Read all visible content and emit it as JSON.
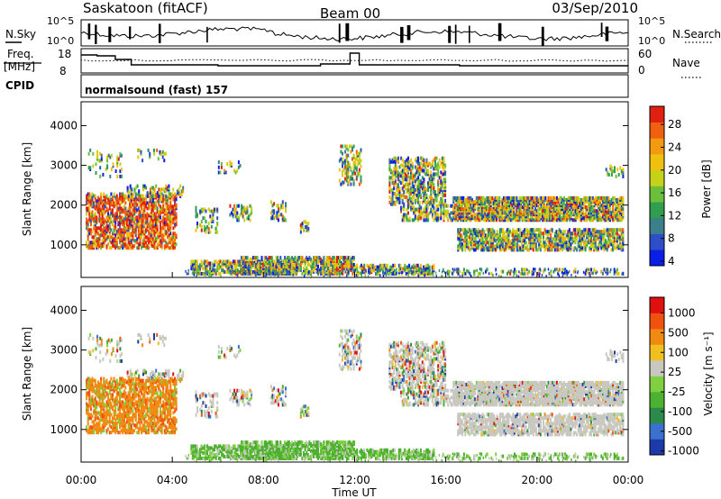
{
  "header": {
    "station": "Saskatoon (fitACF)",
    "beam": "Beam 00",
    "date": "03/Sep/2010"
  },
  "noise_panel": {
    "left_label": "N.Sky",
    "right_label": "N.Search",
    "left_ticks": [
      "10^5",
      "10^0"
    ],
    "right_ticks": [
      "10^5",
      "10^0"
    ]
  },
  "freq_panel": {
    "left_label_1": "Freq.",
    "left_label_2": "[MHz]",
    "right_label": "Nave",
    "left_ticks": [
      "18",
      "8"
    ],
    "right_ticks": [
      "60",
      "0"
    ]
  },
  "cpid": {
    "label": "CPID",
    "text": "normalsound (fast) 157"
  },
  "power_panel": {
    "ylabel": "Slant Range [km]",
    "yticks": [
      "4000",
      "3000",
      "2000",
      "1000"
    ],
    "colorbar_label": "Power [dB]",
    "colorbar_ticks": [
      "28",
      "24",
      "20",
      "16",
      "12",
      "8",
      "4"
    ],
    "colors": [
      "#0a1ee6",
      "#2e4ec8",
      "#3a7f8a",
      "#2f9e4e",
      "#6bbf3a",
      "#c6d21a",
      "#f0c010",
      "#f29a10",
      "#f06010",
      "#e02010"
    ]
  },
  "velocity_panel": {
    "ylabel": "Slant Range [km]",
    "yticks": [
      "4000",
      "3000",
      "2000",
      "1000"
    ],
    "colorbar_label": "Velocity [m s⁻¹]",
    "colorbar_ticks": [
      "1000",
      "500",
      "100",
      "25",
      "-25",
      "-100",
      "-500",
      "-1000"
    ],
    "colors": [
      "#1c3aa8",
      "#3b6fd0",
      "#2b8a4a",
      "#4cb030",
      "#7fd040",
      "#c8c8c0",
      "#f0c020",
      "#f08a10",
      "#f05010",
      "#e01010"
    ]
  },
  "x_axis": {
    "ticks": [
      "00:00",
      "04:00",
      "08:00",
      "12:00",
      "16:00",
      "20:00",
      "00:00"
    ],
    "label": "Time UT"
  },
  "chart_data": {
    "type": "heatmap",
    "title": "Saskatoon (fitACF)",
    "x_range_hours": [
      0,
      24
    ],
    "y_range_km": [
      180,
      4600
    ],
    "power_range_db": [
      0,
      32
    ],
    "velocity_range": [
      -1000,
      1000
    ],
    "xlabel": "Time UT",
    "ylabel": "Slant Range [km]"
  }
}
